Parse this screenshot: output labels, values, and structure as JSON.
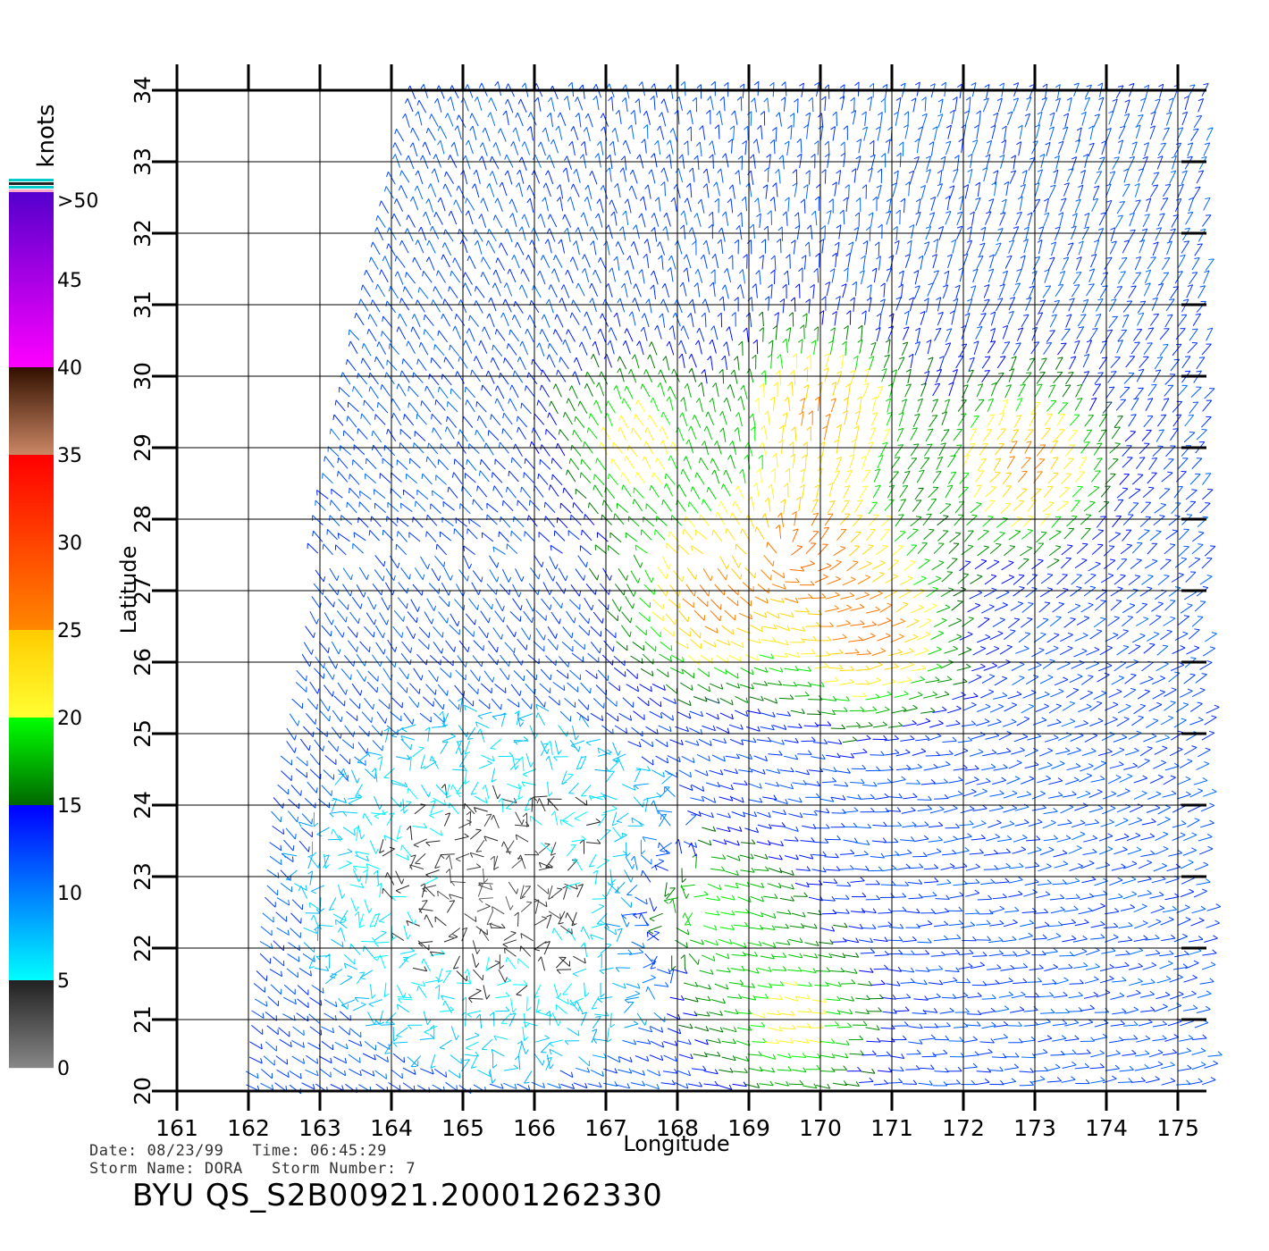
{
  "chart_data": {
    "type": "wind-vector-map",
    "xlabel": "Longitude",
    "ylabel": "Latitude",
    "x_ticks": [
      "161",
      "162",
      "163",
      "164",
      "165",
      "166",
      "167",
      "168",
      "169",
      "170",
      "171",
      "172",
      "173",
      "174",
      "175"
    ],
    "y_ticks": [
      "20",
      "21",
      "22",
      "23",
      "24",
      "25",
      "26",
      "27",
      "28",
      "29",
      "30",
      "31",
      "32",
      "33",
      "34"
    ],
    "xlim": [
      161,
      175.4
    ],
    "ylim": [
      20,
      34
    ],
    "grid": true,
    "colorbar": {
      "unit": "knots",
      "placement": "left",
      "labels": [
        {
          "value": 0,
          "text": "0"
        },
        {
          "value": 5,
          "text": "5"
        },
        {
          "value": 10,
          "text": "10"
        },
        {
          "value": 15,
          "text": "15"
        },
        {
          "value": 20,
          "text": "20"
        },
        {
          "value": 25,
          "text": "25"
        },
        {
          "value": 30,
          "text": "30"
        },
        {
          "value": 35,
          "text": "35"
        },
        {
          "value": 40,
          "text": "40"
        },
        {
          "value": 45,
          "text": "45"
        },
        {
          "value": 50,
          "text": ">50"
        }
      ],
      "stops": [
        {
          "value": 0,
          "color": "#888888"
        },
        {
          "value": 5,
          "color": "#222222"
        },
        {
          "value": 5.01,
          "color": "#00ffff"
        },
        {
          "value": 15,
          "color": "#0000ff"
        },
        {
          "value": 15.01,
          "color": "#006600"
        },
        {
          "value": 20,
          "color": "#00ff00"
        },
        {
          "value": 20.01,
          "color": "#ffff33"
        },
        {
          "value": 25,
          "color": "#ffcc00"
        },
        {
          "value": 25.01,
          "color": "#ff8800"
        },
        {
          "value": 35,
          "color": "#ff0000"
        },
        {
          "value": 35.01,
          "color": "#cc8866"
        },
        {
          "value": 40,
          "color": "#331100"
        },
        {
          "value": 40.01,
          "color": "#ff00ff"
        },
        {
          "value": 50,
          "color": "#5500cc"
        }
      ]
    },
    "storm_features": {
      "swath_west_boundary": [
        [
          164.3,
          34
        ],
        [
          163.3,
          29.5
        ],
        [
          162.3,
          24
        ],
        [
          161.9,
          20
        ]
      ],
      "low_wind_center": [
        165.5,
        22.8
      ],
      "high_wind_zones": [
        {
          "center": [
            169.8,
            27.5
          ],
          "speed_knots": 28
        },
        {
          "center": [
            168.4,
            26.9
          ],
          "speed_knots": 27
        },
        {
          "center": [
            170.6,
            26.4
          ],
          "speed_knots": 27
        },
        {
          "center": [
            172.8,
            28.7
          ],
          "speed_knots": 26
        },
        {
          "center": [
            170.0,
            29.4
          ],
          "speed_knots": 26
        },
        {
          "center": [
            167.5,
            29.0
          ],
          "speed_knots": 22
        },
        {
          "center": [
            169.5,
            21.0
          ],
          "speed_knots": 22
        },
        {
          "center": [
            168.5,
            22.5
          ],
          "speed_knots": 20
        }
      ],
      "background_speed_knots": 12
    }
  },
  "info": {
    "date_label": "Date:",
    "date": "08/23/99",
    "time_label": "Time:",
    "time": "06:45:29",
    "storm_name_label": "Storm Name:",
    "storm_name": "DORA",
    "storm_number_label": "Storm Number:",
    "storm_number": "7"
  },
  "footer_title": "BYU QS_S2B00921.20001262330"
}
